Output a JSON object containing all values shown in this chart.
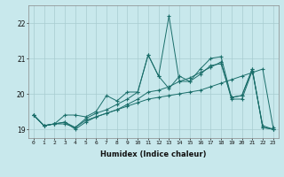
{
  "xlabel": "Humidex (Indice chaleur)",
  "ylabel": "",
  "bg_color": "#c8e8ec",
  "grid_color": "#a8ccd0",
  "line_color": "#1a6e6a",
  "xlim": [
    -0.5,
    23.5
  ],
  "ylim": [
    18.75,
    22.5
  ],
  "yticks": [
    19,
    20,
    21,
    22
  ],
  "xticks": [
    0,
    1,
    2,
    3,
    4,
    5,
    6,
    7,
    8,
    9,
    10,
    11,
    12,
    13,
    14,
    15,
    16,
    17,
    18,
    19,
    20,
    21,
    22,
    23
  ],
  "series": [
    [
      19.4,
      19.1,
      19.15,
      19.15,
      19.05,
      19.3,
      19.45,
      19.55,
      19.7,
      19.85,
      20.05,
      21.1,
      20.5,
      22.2,
      20.35,
      20.35,
      20.55,
      20.8,
      20.85,
      19.9,
      19.95,
      20.7,
      19.05,
      19.0
    ],
    [
      19.4,
      19.1,
      19.15,
      19.2,
      19.05,
      19.25,
      19.35,
      19.45,
      19.55,
      19.7,
      19.85,
      20.05,
      20.1,
      20.2,
      20.35,
      20.45,
      20.6,
      20.75,
      20.9,
      19.85,
      19.85,
      20.65,
      19.1,
      19.0
    ],
    [
      19.4,
      19.1,
      19.15,
      19.2,
      19.0,
      19.2,
      19.35,
      19.45,
      19.55,
      19.65,
      19.75,
      19.85,
      19.9,
      19.95,
      20.0,
      20.05,
      20.1,
      20.2,
      20.3,
      20.4,
      20.5,
      20.6,
      20.7,
      19.05
    ],
    [
      19.4,
      19.1,
      19.15,
      19.4,
      19.4,
      19.35,
      19.5,
      19.95,
      19.8,
      20.05,
      20.05,
      21.1,
      20.5,
      20.15,
      20.5,
      20.35,
      20.7,
      21.0,
      21.05,
      19.9,
      19.95,
      20.7,
      19.05,
      19.0
    ]
  ]
}
